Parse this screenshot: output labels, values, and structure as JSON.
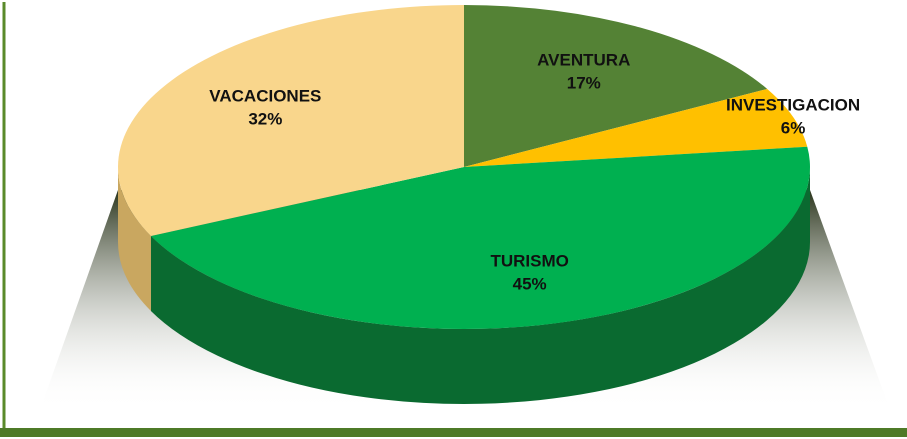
{
  "chart_data": {
    "type": "pie",
    "categories": [
      "AVENTURA",
      "INVESTIGACION",
      "TURISMO",
      "VACACIONES"
    ],
    "values": [
      17,
      6,
      45,
      32
    ],
    "value_labels": [
      "17%",
      "6%",
      "45%",
      "32%"
    ],
    "colors": [
      "#548235",
      "#ffc000",
      "#00b050",
      "#f9d68c"
    ],
    "side_colors": [
      "#375a22",
      "#b88a00",
      "#0a6a30",
      "#c9a760"
    ]
  }
}
